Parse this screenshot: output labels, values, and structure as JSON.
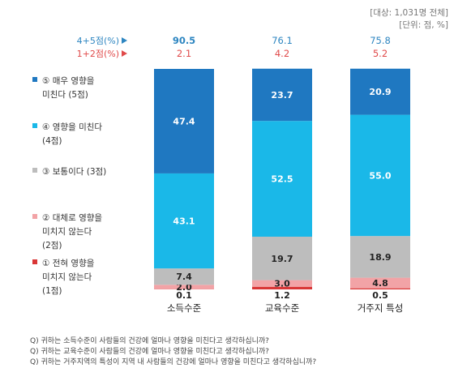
{
  "meta": {
    "sample_note": "[대상: 1,031명 전체]",
    "unit_note": "[단위: 점, %]"
  },
  "summary_rows": [
    {
      "label": "4+5점(%)",
      "color": "#2E86C1",
      "values": [
        "90.5",
        "76.1",
        "75.8"
      ]
    },
    {
      "label": "1+2점(%)",
      "color": "#E04A4A",
      "values": [
        "2.1",
        "4.2",
        "5.2"
      ]
    }
  ],
  "legend": [
    {
      "lines": [
        "⑤ 매우 영향을",
        "미친다 (5점)"
      ],
      "color": "#1F78C1",
      "icon": "square-marker"
    },
    {
      "lines": [
        "④ 영향을 미친다",
        "(4점)"
      ],
      "color": "#1AB8E8",
      "icon": "square-marker"
    },
    {
      "lines": [
        "③ 보통이다 (3점)"
      ],
      "color": "#BDBDBD",
      "icon": "square-marker"
    },
    {
      "lines": [
        "② 대체로 영향을",
        "미치지 않는다",
        "(2점)"
      ],
      "color": "#F2A3A6",
      "icon": "square-marker"
    },
    {
      "lines": [
        "① 전혀 영향을",
        "미치지 않는다",
        "(1점)"
      ],
      "color": "#D93636",
      "icon": "square-marker"
    }
  ],
  "chart_data": {
    "type": "bar",
    "stacked": true,
    "categories": [
      "소득수준",
      "교육수준",
      "거주지 특성"
    ],
    "series": [
      {
        "name": "① 전혀 영향을 미치지 않는다 (1점)",
        "color": "#D93636",
        "values": [
          0.1,
          1.2,
          0.5
        ]
      },
      {
        "name": "② 대체로 영향을 미치지 않는다 (2점)",
        "color": "#F2A3A6",
        "values": [
          2.0,
          3.0,
          4.8
        ]
      },
      {
        "name": "③ 보통이다 (3점)",
        "color": "#BDBDBD",
        "values": [
          7.4,
          19.7,
          18.9
        ]
      },
      {
        "name": "④ 영향을 미친다 (4점)",
        "color": "#1AB8E8",
        "values": [
          43.1,
          52.5,
          55.0
        ]
      },
      {
        "name": "⑤ 매우 영향을 미친다 (5점)",
        "color": "#1F78C1",
        "values": [
          47.4,
          23.7,
          20.9
        ]
      }
    ],
    "ylim": [
      0,
      100
    ],
    "grid": false,
    "legend_position": "left"
  },
  "footnotes": [
    "Q) 귀하는 소득수준이 사람들의 건강에 얼마나 영향을 미친다고 생각하십니까?",
    "Q) 귀하는 교육수준이 사람들의 건강에 얼마나 영향을 미친다고 생각하십니까?",
    "Q) 귀하는 거주지역의 특성이 지역 내 사람들의 건강에 얼마나 영향을 미친다고 생각하십니까?"
  ]
}
